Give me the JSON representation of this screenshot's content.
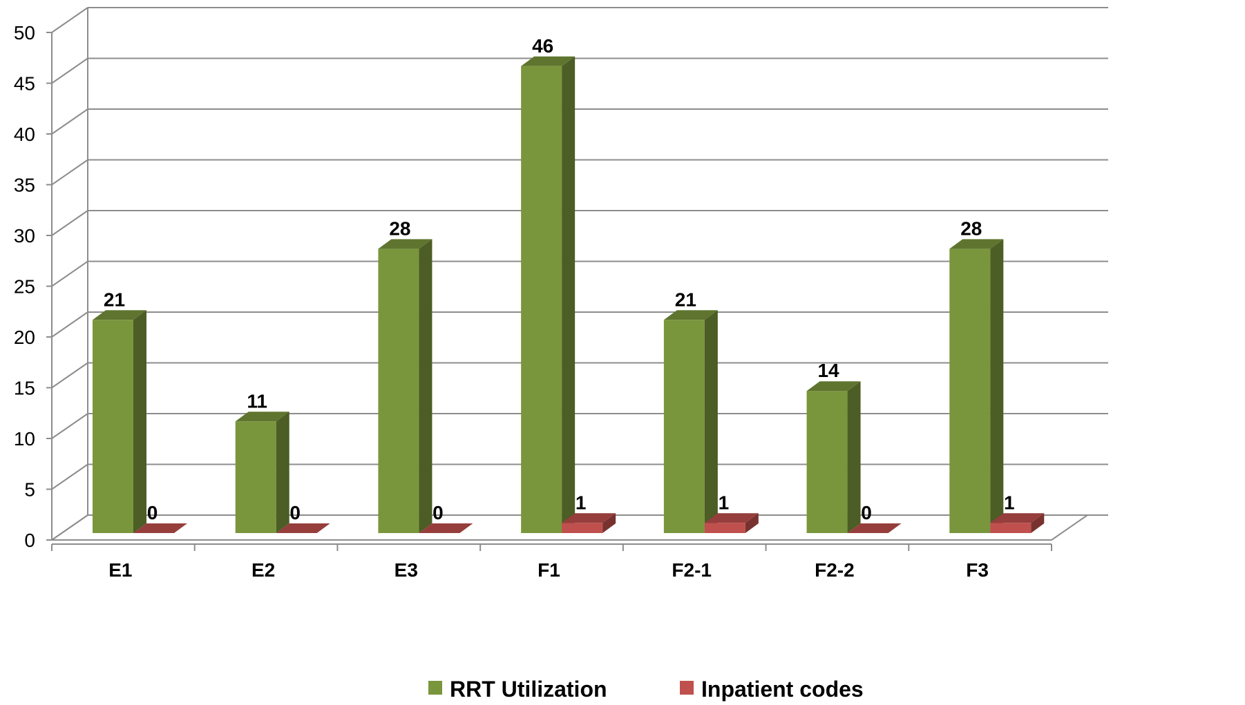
{
  "chart_data": {
    "type": "bar",
    "style": "3d-clustered-column",
    "categories": [
      "E1",
      "E2",
      "E3",
      "F1",
      "F2-1",
      "F2-2",
      "F3"
    ],
    "series": [
      {
        "name": "RRT Utilization",
        "values": [
          21,
          11,
          28,
          46,
          21,
          14,
          28
        ],
        "color": "#7a963c"
      },
      {
        "name": "Inpatient codes",
        "values": [
          0,
          0,
          0,
          1,
          1,
          0,
          1
        ],
        "color": "#c0504d"
      }
    ],
    "yticks": [
      "0",
      "5",
      "10",
      "15",
      "20",
      "25",
      "30",
      "35",
      "40",
      "45",
      "50"
    ],
    "ylim": [
      0,
      50
    ],
    "grid": true,
    "legend": "bottom",
    "data_labels": true,
    "title": "",
    "xlabel": "",
    "ylabel": ""
  }
}
